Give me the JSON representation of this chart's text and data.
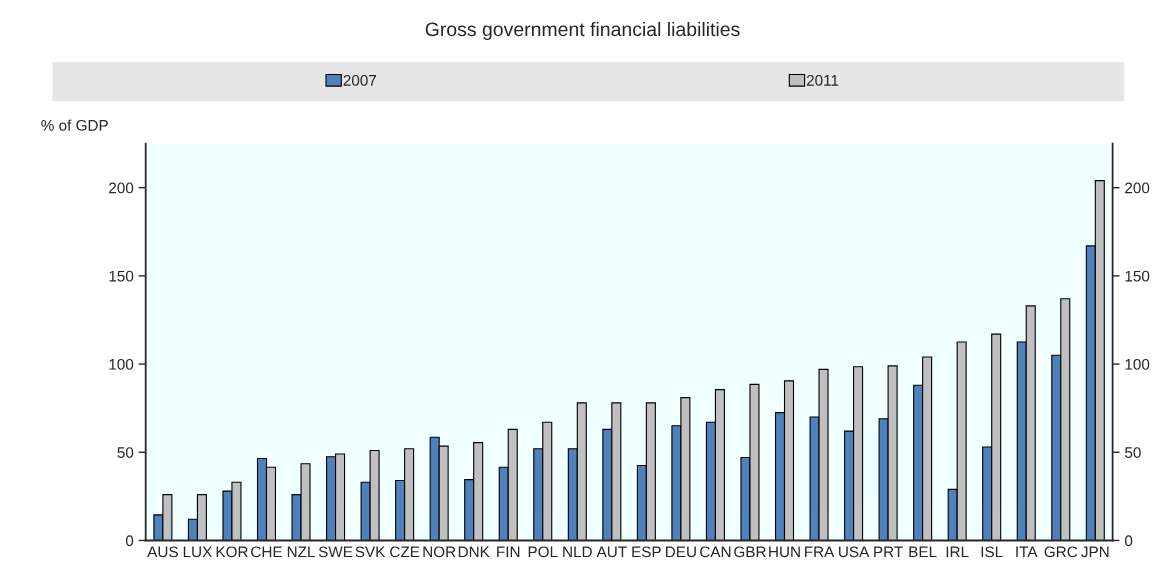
{
  "chart_data": {
    "type": "bar",
    "title": "Gross government financial liabilities",
    "ylabel": "% of GDP",
    "categories": [
      "AUS",
      "LUX",
      "KOR",
      "CHE",
      "NZL",
      "SWE",
      "SVK",
      "CZE",
      "NOR",
      "DNK",
      "FIN",
      "POL",
      "NLD",
      "AUT",
      "ESP",
      "DEU",
      "CAN",
      "GBR",
      "HUN",
      "FRA",
      "USA",
      "PRT",
      "BEL",
      "IRL",
      "ISL",
      "ITA",
      "GRC",
      "JPN"
    ],
    "series": [
      {
        "name": "2007",
        "color": "#4f81bd",
        "values": [
          14.5,
          12,
          28,
          46.5,
          26,
          47.5,
          33,
          34,
          58.5,
          34.5,
          41.5,
          52,
          52,
          63,
          42.5,
          65,
          67,
          47,
          72.5,
          70,
          62,
          69,
          88,
          29,
          53,
          112.5,
          105,
          167
        ]
      },
      {
        "name": "2011",
        "color": "#c0c0c0",
        "values": [
          26,
          26,
          33,
          41.5,
          43.5,
          49,
          51,
          52,
          53.5,
          55.5,
          63,
          67,
          78,
          78,
          78,
          81,
          85.5,
          88.5,
          90.5,
          97,
          98.5,
          99,
          104,
          112.5,
          117,
          133,
          137,
          204
        ]
      }
    ],
    "ylim": [
      0,
      225
    ],
    "yticks": [
      0,
      50,
      100,
      150,
      200
    ],
    "y2lim": [
      0,
      225
    ],
    "y2ticks": [
      0,
      50,
      100,
      150,
      200
    ],
    "grid": false,
    "legend": "top"
  }
}
